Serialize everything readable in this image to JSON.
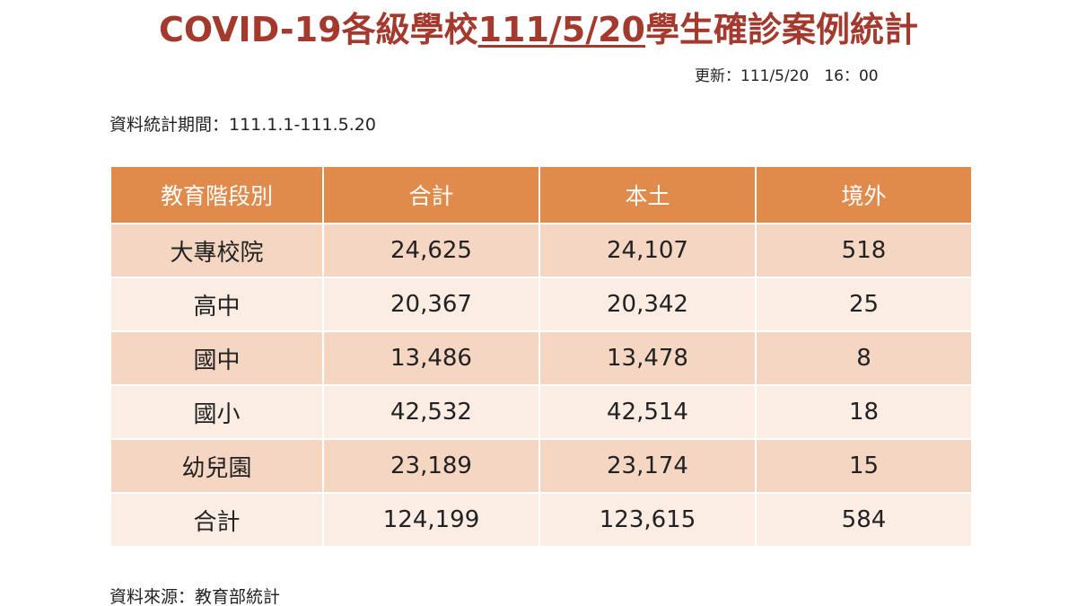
{
  "title": {
    "prefix": "COVID-19各級學校",
    "date": "111/5/20",
    "suffix": "學生確診案例統計"
  },
  "updated": "更新：111/5/20　16：00",
  "period": "資料統計期間：111.1.1-111.5.20",
  "table": {
    "headers": [
      "教育階段別",
      "合計",
      "本土",
      "境外"
    ],
    "rows": [
      [
        "大專校院",
        "24,625",
        "24,107",
        "518"
      ],
      [
        "高中",
        "20,367",
        "20,342",
        "25"
      ],
      [
        "國中",
        "13,486",
        "13,478",
        "8"
      ],
      [
        "國小",
        "42,532",
        "42,514",
        "18"
      ],
      [
        "幼兒園",
        "23,189",
        "23,174",
        "15"
      ],
      [
        "合計",
        "124,199",
        "123,615",
        "584"
      ]
    ]
  },
  "source": "資料來源：教育部統計",
  "colors": {
    "title": "#a33a2d",
    "header_bg": "#e08a4c",
    "row_dark": "#f5d6c3",
    "row_light": "#fbece4"
  }
}
